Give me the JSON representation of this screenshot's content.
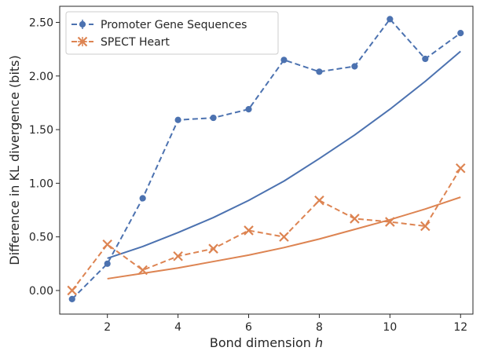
{
  "chart_data": {
    "type": "line",
    "xlabel_prefix": "Bond dimension ",
    "xlabel_var": "h",
    "ylabel": "Difference in KL divergence (bits)",
    "xlim": [
      0.65,
      12.35
    ],
    "ylim": [
      -0.22,
      2.65
    ],
    "xticks": [
      2,
      4,
      6,
      8,
      10,
      12
    ],
    "xtick_labels": [
      "2",
      "4",
      "6",
      "8",
      "10",
      "12"
    ],
    "yticks": [
      0,
      0.5,
      1.0,
      1.5,
      2.0,
      2.5
    ],
    "ytick_labels": [
      "0.00",
      "0.50",
      "1.00",
      "1.50",
      "2.00",
      "2.50"
    ],
    "grid": false,
    "legend_position": "top-left",
    "series": [
      {
        "name": "Promoter Gene Sequences",
        "color": "#4c72b0",
        "marker": "circle",
        "linestyle": "dashed",
        "x": [
          1,
          2,
          3,
          4,
          5,
          6,
          7,
          8,
          9,
          10,
          11,
          12
        ],
        "y": [
          -0.08,
          0.25,
          0.86,
          1.59,
          1.61,
          1.69,
          2.15,
          2.04,
          2.09,
          2.53,
          2.16,
          2.4
        ]
      },
      {
        "name": "SPECT Heart",
        "color": "#dd8452",
        "marker": "x",
        "linestyle": "dashed",
        "x": [
          1,
          2,
          3,
          4,
          5,
          6,
          7,
          8,
          9,
          10,
          11,
          12
        ],
        "y": [
          0.0,
          0.43,
          0.19,
          0.32,
          0.39,
          0.56,
          0.5,
          0.84,
          0.67,
          0.64,
          0.6,
          1.14
        ]
      },
      {
        "color": "#4c72b0",
        "linestyle": "solid",
        "x": [
          2,
          3,
          4,
          5,
          6,
          7,
          8,
          9,
          10,
          11,
          12
        ],
        "y": [
          0.3,
          0.41,
          0.54,
          0.68,
          0.84,
          1.02,
          1.23,
          1.45,
          1.69,
          1.95,
          2.23
        ]
      },
      {
        "color": "#dd8452",
        "linestyle": "solid",
        "x": [
          2,
          3,
          4,
          5,
          6,
          7,
          8,
          9,
          10,
          11,
          12
        ],
        "y": [
          0.11,
          0.16,
          0.21,
          0.27,
          0.33,
          0.4,
          0.48,
          0.57,
          0.66,
          0.76,
          0.87
        ]
      }
    ]
  }
}
